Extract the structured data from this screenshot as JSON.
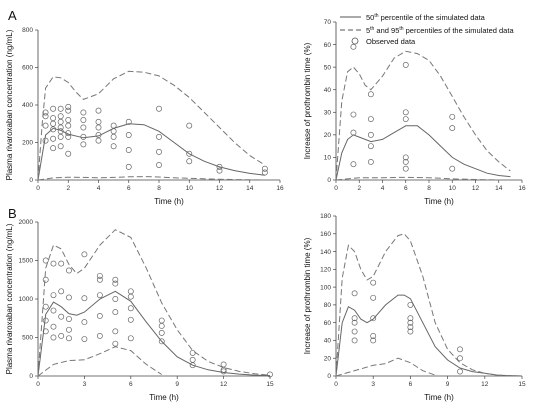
{
  "panel_labels": [
    "A",
    "B"
  ],
  "legend": {
    "median": "50th percentile of the simulated data",
    "median_base": "50",
    "median_sup": "th",
    "median_rest": " percentile of the simulated data",
    "band_base1": "5",
    "band_sup1": "th",
    "band_mid": " and 95",
    "band_sup2": "th",
    "band_rest": " percentiles of the simulated data",
    "observed": "Observed data"
  },
  "chart_data": [
    {
      "type": "line",
      "panel": "A",
      "xlabel": "Time (h)",
      "ylabel": "Plasma rivaroxaban concentration (ng/mL)",
      "xlim": [
        0,
        16
      ],
      "ylim": [
        0,
        800
      ],
      "xticks": [
        0,
        2,
        4,
        6,
        8,
        10,
        12,
        14,
        16
      ],
      "yticks": [
        0,
        200,
        400,
        600,
        800
      ],
      "series": [
        {
          "style": "solid",
          "x": [
            0,
            0.5,
            1,
            1.5,
            2,
            3,
            4,
            5,
            6,
            7,
            8,
            9,
            10,
            11,
            12,
            13,
            14,
            15
          ],
          "y": [
            0,
            240,
            275,
            265,
            245,
            225,
            235,
            275,
            300,
            295,
            260,
            200,
            140,
            100,
            70,
            50,
            35,
            25
          ]
        },
        {
          "style": "dashed",
          "x": [
            0,
            0.3,
            0.5,
            1,
            1.5,
            2,
            2.5,
            3,
            4,
            5,
            6,
            7,
            8,
            9,
            10,
            11,
            12,
            13,
            14,
            15
          ],
          "y": [
            0,
            320,
            490,
            550,
            545,
            520,
            470,
            430,
            460,
            540,
            580,
            575,
            555,
            505,
            440,
            360,
            280,
            200,
            130,
            80
          ]
        },
        {
          "style": "dashed",
          "x": [
            0,
            0.5,
            1,
            2,
            3,
            4,
            5,
            6,
            7,
            8,
            9,
            10,
            12,
            14,
            15
          ],
          "y": [
            0,
            5,
            12,
            15,
            14,
            12,
            14,
            17,
            18,
            16,
            12,
            9,
            4,
            1,
            0
          ]
        }
      ],
      "observed": {
        "x": [
          0.5,
          0.5,
          0.5,
          0.5,
          1,
          1,
          1,
          1,
          1,
          1,
          1.5,
          1.5,
          1.5,
          1.5,
          1.5,
          1.5,
          1.5,
          2,
          2,
          2,
          2,
          2,
          2,
          2,
          3,
          3,
          3,
          3,
          3,
          4,
          4,
          4,
          4,
          4,
          5,
          5,
          5,
          5,
          6,
          6,
          6,
          6,
          8,
          8,
          8,
          8,
          10,
          10,
          10,
          12,
          12,
          15,
          15
        ],
        "y": [
          210,
          290,
          340,
          360,
          170,
          220,
          270,
          300,
          330,
          380,
          180,
          230,
          260,
          280,
          310,
          340,
          380,
          140,
          230,
          250,
          290,
          320,
          370,
          390,
          190,
          230,
          280,
          320,
          360,
          210,
          240,
          280,
          310,
          370,
          180,
          230,
          260,
          290,
          70,
          160,
          240,
          310,
          80,
          150,
          230,
          380,
          100,
          140,
          290,
          50,
          70,
          40,
          60
        ]
      }
    },
    {
      "type": "line",
      "panel": "A",
      "xlabel": "Time (h)",
      "ylabel": "Increase of prothrombin time (%)",
      "xlim": [
        0,
        16
      ],
      "ylim": [
        0,
        70
      ],
      "xticks": [
        0,
        2,
        4,
        6,
        8,
        10,
        12,
        14,
        16
      ],
      "yticks": [
        0,
        10,
        20,
        30,
        40,
        50,
        60,
        70
      ],
      "series": [
        {
          "style": "solid",
          "x": [
            0,
            0.5,
            1,
            1.5,
            2,
            3,
            4,
            5,
            6,
            7,
            8,
            9,
            10,
            11,
            12,
            13,
            14,
            15
          ],
          "y": [
            0,
            12,
            18,
            20,
            19,
            17,
            18,
            21,
            24,
            24,
            20,
            15,
            10,
            7,
            5,
            3,
            2,
            1.5
          ]
        },
        {
          "style": "dashed",
          "x": [
            0,
            0.5,
            1,
            1.5,
            2,
            2.5,
            3,
            4,
            5,
            6,
            7,
            8,
            9,
            10,
            11,
            12,
            13,
            14,
            15
          ],
          "y": [
            0,
            35,
            48,
            50,
            47,
            42,
            40,
            46,
            54,
            57,
            56,
            53,
            46,
            37,
            28,
            20,
            13,
            8,
            4
          ]
        },
        {
          "style": "dashed",
          "x": [
            0,
            1,
            2,
            4,
            6,
            8,
            10,
            12,
            14,
            15
          ],
          "y": [
            0,
            0.5,
            1,
            1,
            1.2,
            1,
            0.5,
            0.2,
            0,
            0
          ]
        }
      ],
      "observed": {
        "x": [
          1.5,
          1.5,
          1.5,
          1.5,
          3,
          3,
          3,
          3,
          3,
          6,
          6,
          6,
          6,
          6,
          6,
          10,
          10,
          10
        ],
        "y": [
          59,
          29,
          21,
          7,
          38,
          27,
          20,
          15,
          8,
          51,
          27,
          10,
          8,
          5,
          30,
          28,
          23,
          5
        ]
      }
    },
    {
      "type": "line",
      "panel": "B",
      "xlabel": "Time (h)",
      "ylabel": "Plasma rivaroxaban concentration (ng/mL)",
      "xlim": [
        0,
        15
      ],
      "ylim": [
        0,
        2000
      ],
      "xticks": [
        0,
        3,
        6,
        9,
        12,
        15
      ],
      "yticks": [
        0,
        500,
        1000,
        1500,
        2000
      ],
      "series": [
        {
          "style": "solid",
          "x": [
            0,
            0.5,
            1,
            1.5,
            2,
            2.5,
            3,
            4,
            5,
            6,
            7,
            8,
            9,
            10,
            11,
            12,
            13,
            14,
            15
          ],
          "y": [
            0,
            800,
            960,
            900,
            810,
            790,
            830,
            1000,
            1100,
            970,
            700,
            450,
            250,
            140,
            80,
            45,
            25,
            12,
            5
          ]
        },
        {
          "style": "dashed",
          "x": [
            0,
            0.5,
            1,
            1.5,
            2,
            2.5,
            3,
            4,
            5,
            6,
            7,
            8,
            9,
            10,
            11,
            12,
            13,
            14,
            15
          ],
          "y": [
            0,
            1400,
            1700,
            1650,
            1450,
            1330,
            1400,
            1700,
            1900,
            1800,
            1400,
            950,
            600,
            330,
            190,
            110,
            60,
            30,
            10
          ]
        },
        {
          "style": "dashed",
          "x": [
            0,
            1,
            2,
            3,
            4,
            5,
            6,
            7,
            8
          ],
          "y": [
            0,
            150,
            200,
            210,
            290,
            380,
            330,
            150,
            20
          ]
        }
      ],
      "observed": {
        "x": [
          0.5,
          0.5,
          0.5,
          0.5,
          0.5,
          1,
          1,
          1,
          1,
          1,
          1.5,
          1.5,
          1.5,
          1.5,
          2,
          2,
          2,
          2,
          2,
          3,
          3,
          3,
          3,
          4,
          4,
          4,
          4,
          4,
          5,
          5,
          5,
          5,
          5,
          5,
          6,
          6,
          6,
          6,
          6,
          8,
          8,
          8,
          8,
          10,
          10,
          10,
          12,
          12,
          12,
          15
        ],
        "y": [
          580,
          720,
          900,
          1250,
          1500,
          500,
          640,
          850,
          1050,
          1460,
          520,
          770,
          1100,
          1460,
          490,
          600,
          740,
          1020,
          1370,
          480,
          700,
          1010,
          1580,
          520,
          780,
          1050,
          1250,
          1300,
          420,
          580,
          830,
          1000,
          1200,
          1250,
          490,
          730,
          880,
          1030,
          1100,
          450,
          560,
          650,
          720,
          140,
          210,
          300,
          60,
          80,
          150,
          20
        ]
      }
    },
    {
      "type": "line",
      "panel": "B",
      "xlabel": "Time (h)",
      "ylabel": "Increase of prothrombin time (%)",
      "xlim": [
        0,
        15
      ],
      "ylim": [
        0,
        180
      ],
      "xticks": [
        0,
        3,
        6,
        9,
        12,
        15
      ],
      "yticks": [
        0,
        20,
        40,
        60,
        80,
        100,
        120,
        140,
        160,
        180
      ],
      "series": [
        {
          "style": "solid",
          "x": [
            0,
            0.5,
            1,
            1.5,
            2,
            2.5,
            3,
            4,
            5,
            5.5,
            6,
            7,
            8,
            9,
            10,
            11,
            12,
            13,
            14,
            15
          ],
          "y": [
            0,
            60,
            78,
            74,
            64,
            60,
            64,
            80,
            91,
            91,
            87,
            60,
            33,
            18,
            9,
            5,
            3,
            1,
            0.5,
            0
          ]
        },
        {
          "style": "dashed",
          "x": [
            0,
            0.5,
            1,
            1.5,
            2,
            2.5,
            3,
            4,
            5,
            5.5,
            6,
            7,
            8,
            9,
            10,
            11,
            12,
            13,
            14,
            15
          ],
          "y": [
            0,
            110,
            147,
            140,
            120,
            108,
            112,
            140,
            158,
            160,
            152,
            112,
            60,
            30,
            15,
            7,
            3,
            1,
            0.5,
            0
          ]
        },
        {
          "style": "dashed",
          "x": [
            0,
            1,
            2,
            3,
            4,
            5,
            6,
            7,
            8
          ],
          "y": [
            0,
            4,
            8,
            12,
            14,
            20,
            15,
            6,
            1
          ]
        }
      ],
      "observed": {
        "x": [
          1.5,
          1.5,
          1.5,
          1.5,
          1.5,
          3,
          3,
          3,
          3,
          3,
          6,
          6,
          6,
          6,
          6,
          10,
          10,
          10
        ],
        "y": [
          93,
          65,
          60,
          50,
          40,
          105,
          88,
          65,
          45,
          40,
          80,
          65,
          60,
          55,
          50,
          30,
          20,
          5
        ]
      }
    }
  ]
}
